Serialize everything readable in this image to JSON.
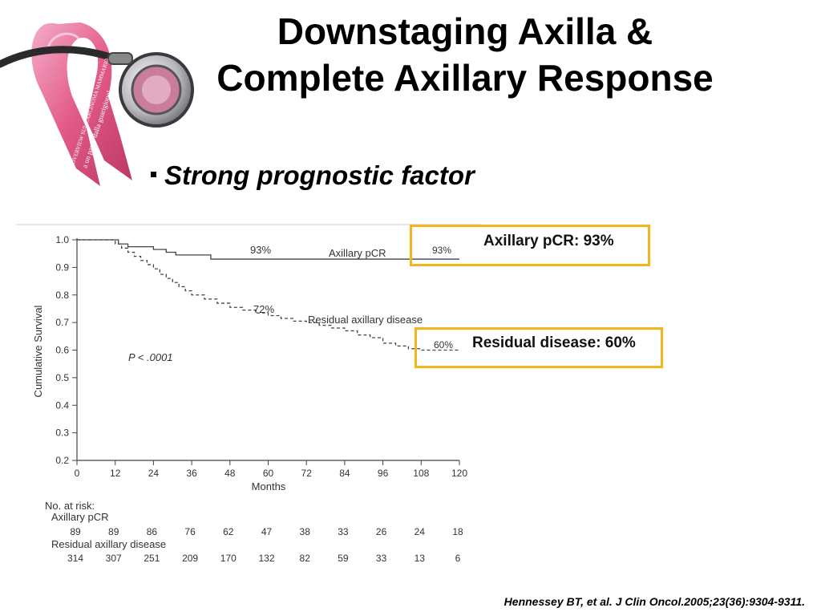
{
  "slide": {
    "title_line1": "Downstaging Axilla &",
    "title_line2": "Complete Axillary Response",
    "bullet": "Strong prognostic factor",
    "citation": "Hennessey BT, et al. J Clin Oncol.2005;23(36):9304-9311.",
    "accent_color": "#f3b51b",
    "logo_text_line1": "OVERVIEW SUL CARCINOMA MAMMARIO",
    "logo_text_line2": "a un passo dalla guarigione!"
  },
  "callouts": [
    {
      "label": "Axillary pCR: 93%"
    },
    {
      "label": "Residual disease: 60%"
    }
  ],
  "chart_data": {
    "type": "line",
    "xlabel": "Months",
    "ylabel": "Cumulative Survival",
    "xlim": [
      0,
      120
    ],
    "ylim": [
      0.2,
      1.0
    ],
    "xticks": [
      0,
      12,
      24,
      36,
      48,
      60,
      72,
      84,
      96,
      108,
      120
    ],
    "yticks": [
      "0.2",
      "0.3",
      "0.4",
      "0.5",
      "0.6",
      "0.7",
      "0.8",
      "0.9",
      "1.0"
    ],
    "p_value": "P < .0001",
    "series": [
      {
        "name": "Axillary pCR",
        "style": "solid",
        "annotation": "93%",
        "end_label": "93%",
        "x": [
          0,
          13,
          13,
          16,
          16,
          24,
          24,
          28,
          28,
          31,
          31,
          42,
          42,
          60,
          60,
          72,
          72,
          120
        ],
        "y": [
          1.0,
          1.0,
          0.985,
          0.985,
          0.975,
          0.975,
          0.965,
          0.965,
          0.955,
          0.955,
          0.945,
          0.945,
          0.93,
          0.93,
          0.93,
          0.93,
          0.93,
          0.93
        ]
      },
      {
        "name": "Residual axillary disease",
        "style": "dashed",
        "annotation": "72%",
        "end_label": "60%",
        "x": [
          0,
          12,
          14,
          16,
          18,
          20,
          22,
          24,
          26,
          28,
          30,
          32,
          34,
          36,
          40,
          44,
          48,
          52,
          56,
          60,
          64,
          68,
          72,
          76,
          80,
          84,
          88,
          92,
          96,
          100,
          104,
          108,
          120
        ],
        "y": [
          1.0,
          0.985,
          0.97,
          0.955,
          0.94,
          0.925,
          0.91,
          0.895,
          0.875,
          0.86,
          0.845,
          0.83,
          0.815,
          0.8,
          0.785,
          0.77,
          0.755,
          0.745,
          0.735,
          0.725,
          0.715,
          0.705,
          0.7,
          0.69,
          0.68,
          0.67,
          0.655,
          0.645,
          0.625,
          0.615,
          0.605,
          0.6,
          0.6
        ]
      }
    ],
    "risk_table": {
      "header": "No. at risk:",
      "rows": [
        {
          "label": "Axillary pCR",
          "values": [
            "89",
            "89",
            "86",
            "76",
            "62",
            "47",
            "38",
            "33",
            "26",
            "24",
            "18"
          ]
        },
        {
          "label": "Residual axillary disease",
          "values": [
            "314",
            "307",
            "251",
            "209",
            "170",
            "132",
            "82",
            "59",
            "33",
            "13",
            "6"
          ]
        }
      ]
    }
  }
}
